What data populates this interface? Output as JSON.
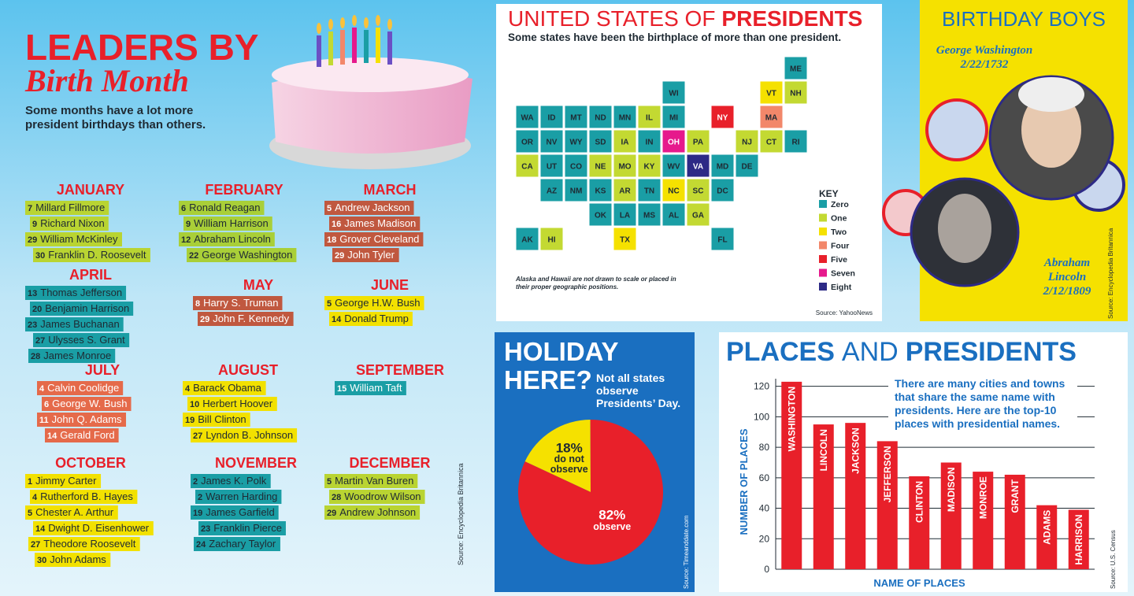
{
  "header": {
    "title": "LEADERS BY",
    "script_title": "Birth Month",
    "subtitle_lines": [
      "Some months have a lot more",
      "president birthdays than others."
    ]
  },
  "months": [
    {
      "name": "JANUARY",
      "color": "#b9d432",
      "text_color": "#1f2a33",
      "presidents": [
        {
          "day": 7,
          "name": "Millard Fillmore"
        },
        {
          "day": 9,
          "name": "Richard Nixon"
        },
        {
          "day": 29,
          "name": "William McKinley"
        },
        {
          "day": 30,
          "name": "Franklin D. Roosevelt"
        }
      ]
    },
    {
      "name": "FEBRUARY",
      "color": "#a9cf38",
      "text_color": "#1f2a33",
      "presidents": [
        {
          "day": 6,
          "name": "Ronald Reagan"
        },
        {
          "day": 9,
          "name": "William Harrison"
        },
        {
          "day": 12,
          "name": "Abraham Lincoln"
        },
        {
          "day": 22,
          "name": "George Washington"
        }
      ]
    },
    {
      "name": "MARCH",
      "color": "#c0583f",
      "text_color": "#ffffff",
      "presidents": [
        {
          "day": 5,
          "name": "Andrew Jackson"
        },
        {
          "day": 16,
          "name": "James Madison"
        },
        {
          "day": 18,
          "name": "Grover Cleveland"
        },
        {
          "day": 29,
          "name": "John Tyler"
        }
      ]
    },
    {
      "name": "APRIL",
      "color": "#1a9ea5",
      "text_color": "#1f2a33",
      "presidents": [
        {
          "day": 13,
          "name": "Thomas Jefferson"
        },
        {
          "day": 20,
          "name": "Benjamin Harrison"
        },
        {
          "day": 23,
          "name": "James Buchanan"
        },
        {
          "day": 27,
          "name": "Ulysses S. Grant"
        },
        {
          "day": 28,
          "name": "James Monroe"
        }
      ]
    },
    {
      "name": "MAY",
      "color": "#c0583f",
      "text_color": "#ffffff",
      "presidents": [
        {
          "day": 8,
          "name": "Harry S. Truman"
        },
        {
          "day": 29,
          "name": "John F. Kennedy"
        }
      ]
    },
    {
      "name": "JUNE",
      "color": "#f2e100",
      "text_color": "#1f2a33",
      "presidents": [
        {
          "day": 5,
          "name": "George H.W. Bush"
        },
        {
          "day": 14,
          "name": "Donald Trump"
        }
      ]
    },
    {
      "name": "JULY",
      "color": "#e56a4a",
      "text_color": "#ffffff",
      "presidents": [
        {
          "day": 4,
          "name": "Calvin Coolidge"
        },
        {
          "day": 6,
          "name": "George W. Bush"
        },
        {
          "day": 11,
          "name": "John Q. Adams"
        },
        {
          "day": 14,
          "name": "Gerald Ford"
        }
      ]
    },
    {
      "name": "AUGUST",
      "color": "#f2e100",
      "text_color": "#1f2a33",
      "presidents": [
        {
          "day": 4,
          "name": "Barack Obama"
        },
        {
          "day": 10,
          "name": "Herbert Hoover"
        },
        {
          "day": 19,
          "name": "Bill Clinton"
        },
        {
          "day": 27,
          "name": "Lyndon B. Johnson"
        }
      ]
    },
    {
      "name": "SEPTEMBER",
      "color": "#1a9ea5",
      "text_color": "#ffffff",
      "presidents": [
        {
          "day": 15,
          "name": "William Taft"
        }
      ]
    },
    {
      "name": "OCTOBER",
      "color": "#f2e100",
      "text_color": "#1f2a33",
      "presidents": [
        {
          "day": 1,
          "name": "Jimmy Carter"
        },
        {
          "day": 4,
          "name": "Rutherford B. Hayes"
        },
        {
          "day": 5,
          "name": "Chester A. Arthur"
        },
        {
          "day": 14,
          "name": "Dwight D. Eisenhower"
        },
        {
          "day": 27,
          "name": "Theodore Roosevelt"
        },
        {
          "day": 30,
          "name": "John Adams"
        }
      ]
    },
    {
      "name": "NOVEMBER",
      "color": "#1a9ea5",
      "text_color": "#1f2a33",
      "presidents": [
        {
          "day": 2,
          "name": "James K. Polk"
        },
        {
          "day": 2,
          "name": "Warren Harding"
        },
        {
          "day": 19,
          "name": "James Garfield"
        },
        {
          "day": 23,
          "name": "Franklin Pierce"
        },
        {
          "day": 24,
          "name": "Zachary Taylor"
        }
      ]
    },
    {
      "name": "DECEMBER",
      "color": "#b9d432",
      "text_color": "#1f2a33",
      "presidents": [
        {
          "day": 5,
          "name": "Martin Van Buren"
        },
        {
          "day": 28,
          "name": "Woodrow Wilson"
        },
        {
          "day": 29,
          "name": "Andrew Johnson"
        }
      ]
    }
  ],
  "months_source": "Source: Encyclopedia Britannica",
  "map": {
    "title": "UNITED STATES OF",
    "title_bold": "PRESIDENTS",
    "subtitle": "Some states have been the birthplace of more than one president.",
    "key_title": "KEY",
    "key": [
      {
        "label": "Zero",
        "value": 0,
        "color": "#1a9ea5"
      },
      {
        "label": "One",
        "value": 1,
        "color": "#c3d932"
      },
      {
        "label": "Two",
        "value": 2,
        "color": "#f5e100"
      },
      {
        "label": "Four",
        "value": 4,
        "color": "#f2876a"
      },
      {
        "label": "Five",
        "value": 5,
        "color": "#e8202a"
      },
      {
        "label": "Seven",
        "value": 7,
        "color": "#e6198c"
      },
      {
        "label": "Eight",
        "value": 8,
        "color": "#2d2a86"
      }
    ],
    "states": [
      {
        "label": "ME",
        "value": 0
      },
      {
        "label": "WI",
        "value": 0
      },
      {
        "label": "VT",
        "value": 2
      },
      {
        "label": "NH",
        "value": 1
      },
      {
        "label": "WA",
        "value": 0
      },
      {
        "label": "ID",
        "value": 0
      },
      {
        "label": "MT",
        "value": 0
      },
      {
        "label": "ND",
        "value": 0
      },
      {
        "label": "MN",
        "value": 0
      },
      {
        "label": "IL",
        "value": 1
      },
      {
        "label": "MI",
        "value": 0
      },
      {
        "label": "NY",
        "value": 5
      },
      {
        "label": "MA",
        "value": 4
      },
      {
        "label": "OR",
        "value": 0
      },
      {
        "label": "NV",
        "value": 0
      },
      {
        "label": "WY",
        "value": 0
      },
      {
        "label": "SD",
        "value": 0
      },
      {
        "label": "IA",
        "value": 1
      },
      {
        "label": "IN",
        "value": 0
      },
      {
        "label": "OH",
        "value": 7
      },
      {
        "label": "PA",
        "value": 1
      },
      {
        "label": "NJ",
        "value": 1
      },
      {
        "label": "CT",
        "value": 1
      },
      {
        "label": "RI",
        "value": 0
      },
      {
        "label": "CA",
        "value": 1
      },
      {
        "label": "UT",
        "value": 0
      },
      {
        "label": "CO",
        "value": 0
      },
      {
        "label": "NE",
        "value": 1
      },
      {
        "label": "MO",
        "value": 1
      },
      {
        "label": "KY",
        "value": 1
      },
      {
        "label": "WV",
        "value": 0
      },
      {
        "label": "VA",
        "value": 8
      },
      {
        "label": "MD",
        "value": 0
      },
      {
        "label": "DE",
        "value": 0
      },
      {
        "label": "AZ",
        "value": 0
      },
      {
        "label": "NM",
        "value": 0
      },
      {
        "label": "KS",
        "value": 0
      },
      {
        "label": "AR",
        "value": 1
      },
      {
        "label": "TN",
        "value": 0
      },
      {
        "label": "NC",
        "value": 2
      },
      {
        "label": "SC",
        "value": 1
      },
      {
        "label": "DC",
        "value": 0
      },
      {
        "label": "OK",
        "value": 0
      },
      {
        "label": "LA",
        "value": 0
      },
      {
        "label": "MS",
        "value": 0
      },
      {
        "label": "AL",
        "value": 0
      },
      {
        "label": "GA",
        "value": 1
      },
      {
        "label": "AK",
        "value": 0
      },
      {
        "label": "HI",
        "value": 1
      },
      {
        "label": "TX",
        "value": 2
      },
      {
        "label": "FL",
        "value": 0
      }
    ],
    "note": "Alaska and Hawaii are not drawn to scale or placed in their proper geographic positions.",
    "source": "Source: YahooNews"
  },
  "birthday": {
    "title": "BIRTHDAY BOYS",
    "people": [
      {
        "name_lines": [
          "George Washington"
        ],
        "date": "2/22/1732"
      },
      {
        "name_lines": [
          "Abraham",
          "Lincoln"
        ],
        "date": "2/12/1809"
      }
    ],
    "source": "Source: Encyclopedia Britannica"
  },
  "chart_data": [
    {
      "type": "pie",
      "title_lines": [
        "HOLIDAY",
        "HERE?"
      ],
      "subtitle": "Not all states observe Presidents’ Day.",
      "categories": [
        "do not observe",
        "observe"
      ],
      "values": [
        18,
        82
      ],
      "value_labels": [
        "18%",
        "82%"
      ],
      "colors": [
        "#f5e100",
        "#e8202a"
      ],
      "source": "Source: Timeanddate.com"
    },
    {
      "type": "bar",
      "title_parts": [
        "PLACES",
        "AND",
        "PRESIDENTS"
      ],
      "annotation": "There are many cities and towns that share the same name with presidents. Here are the top-10 places with presidential names.",
      "x_label": "NAME OF PLACES",
      "y_label": "NUMBER OF PLACES",
      "categories": [
        "WASHINGTON",
        "LINCOLN",
        "JACKSON",
        "JEFFERSON",
        "CLINTON",
        "MADISON",
        "MONROE",
        "GRANT",
        "ADAMS",
        "HARRISON"
      ],
      "values": [
        123,
        95,
        96,
        84,
        61,
        70,
        64,
        62,
        42,
        39
      ],
      "color": "#e8202a",
      "ylim": [
        0,
        125
      ],
      "yticks": [
        0,
        20,
        40,
        60,
        80,
        100,
        120
      ],
      "grid": true,
      "source": "Source: U.S. Census"
    }
  ]
}
